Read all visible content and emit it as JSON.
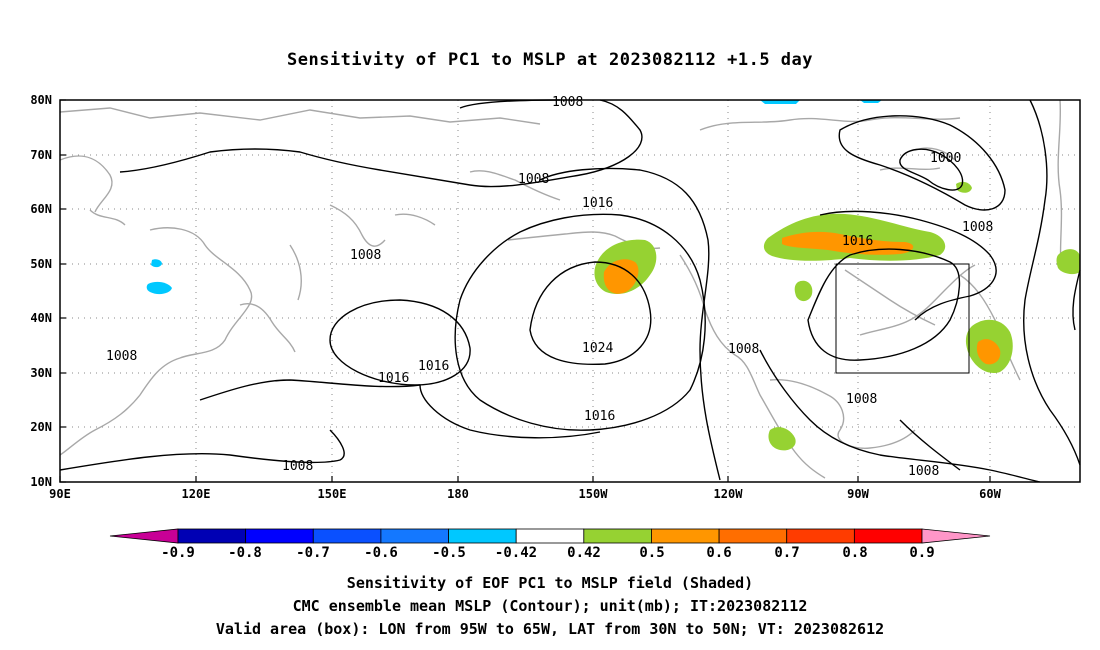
{
  "title": "Sensitivity of PC1 to MSLP at 2023082112 +1.5 day",
  "map": {
    "lat_labels": [
      "80N",
      "70N",
      "60N",
      "50N",
      "40N",
      "30N",
      "20N",
      "10N"
    ],
    "lon_labels": [
      "90E",
      "120E",
      "150E",
      "180",
      "150W",
      "120W",
      "90W",
      "60W"
    ],
    "contour_labels": [
      "1008",
      "1008",
      "1008",
      "1008",
      "1008",
      "1016",
      "1016",
      "1016",
      "1016",
      "1016",
      "1024",
      "1008",
      "1000",
      "1008",
      "1016",
      "1008",
      "1008"
    ],
    "valid_box": {
      "lon_from": "95W",
      "lon_to": "65W",
      "lat_from": "30N",
      "lat_to": "50N"
    }
  },
  "colorbar": {
    "labels": [
      "-0.9",
      "-0.8",
      "-0.7",
      "-0.6",
      "-0.5",
      "-0.42",
      "0.42",
      "0.5",
      "0.6",
      "0.7",
      "0.8",
      "0.9"
    ],
    "colors": [
      "#0000b4",
      "#0000ff",
      "#0a50ff",
      "#1478ff",
      "#00c8ff",
      "#ffffff",
      "#96d232",
      "#ff9600",
      "#ff6e00",
      "#ff3c00",
      "#ff0000"
    ],
    "low_end_color": "#c80096",
    "high_end_color": "#ff96c8"
  },
  "footer": {
    "line1": "Sensitivity of EOF PC1 to MSLP field (Shaded)",
    "line2": "CMC ensemble mean MSLP (Contour); unit(mb); IT:2023082112",
    "line3": "Valid area (box): LON from 95W to 65W, LAT from 30N to 50N; VT: 2023082612"
  }
}
